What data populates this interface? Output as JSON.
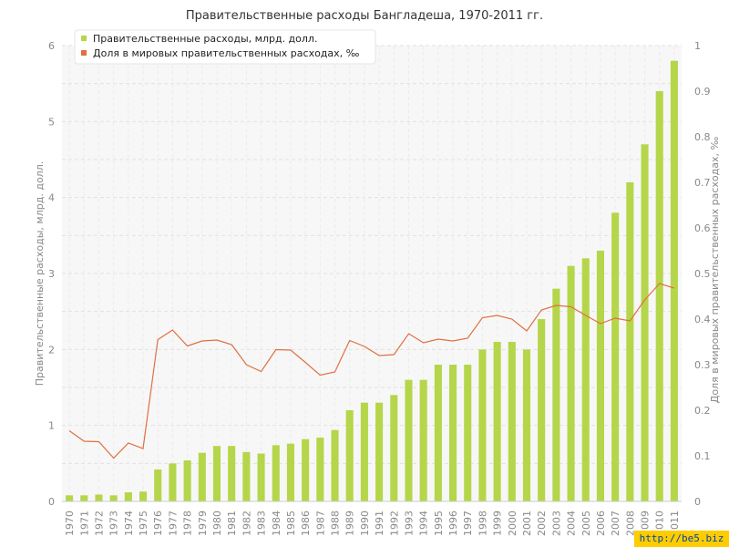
{
  "chart_data": {
    "type": "bar",
    "title": "Правительственные расходы Бангладеша, 1970-2011 гг.",
    "ylabel": "Правительственные расходы, млрд. долл.",
    "y2label": "Доля в мировых правительственных расходах, ‰",
    "ylim": [
      0,
      6
    ],
    "y2lim": [
      0,
      1
    ],
    "yticks": [
      "0",
      "1",
      "2",
      "3",
      "4",
      "5",
      "6"
    ],
    "y2ticks": [
      "0",
      "0.1",
      "0.2",
      "0.3",
      "0.4",
      "0.5",
      "0.6",
      "0.7",
      "0.8",
      "0.9",
      "1"
    ],
    "grid": true,
    "legend_position": "top-left",
    "categories": [
      "1970",
      "1971",
      "1972",
      "1973",
      "1974",
      "1975",
      "1976",
      "1977",
      "1978",
      "1979",
      "1980",
      "1981",
      "1982",
      "1983",
      "1984",
      "1985",
      "1986",
      "1987",
      "1988",
      "1989",
      "1990",
      "1991",
      "1992",
      "1993",
      "1994",
      "1995",
      "1996",
      "1997",
      "1998",
      "1999",
      "2000",
      "2001",
      "2002",
      "2003",
      "2004",
      "2005",
      "2006",
      "2007",
      "2008",
      "2009",
      "2010",
      "2011"
    ],
    "series": [
      {
        "name": "Правительственные расходы, млрд. долл.",
        "type": "bar",
        "axis": "left",
        "color": "#b5d64a",
        "values": [
          0.08,
          0.08,
          0.09,
          0.08,
          0.12,
          0.13,
          0.42,
          0.5,
          0.54,
          0.64,
          0.73,
          0.73,
          0.65,
          0.63,
          0.74,
          0.76,
          0.82,
          0.84,
          0.94,
          1.2,
          1.3,
          1.3,
          1.4,
          1.6,
          1.6,
          1.8,
          1.8,
          1.8,
          2.0,
          2.1,
          2.1,
          2.0,
          2.4,
          2.8,
          3.1,
          3.2,
          3.3,
          3.8,
          4.2,
          4.7,
          5.4,
          5.8
        ]
      },
      {
        "name": "Доля в мировых правительственных расходах, ‰",
        "type": "line",
        "axis": "right",
        "color": "#e07040",
        "values": [
          0.155,
          0.132,
          0.131,
          0.095,
          0.128,
          0.116,
          0.355,
          0.376,
          0.341,
          0.352,
          0.354,
          0.344,
          0.3,
          0.285,
          0.333,
          0.332,
          0.305,
          0.277,
          0.284,
          0.353,
          0.34,
          0.32,
          0.322,
          0.368,
          0.348,
          0.356,
          0.352,
          0.358,
          0.403,
          0.408,
          0.4,
          0.374,
          0.42,
          0.43,
          0.427,
          0.408,
          0.39,
          0.402,
          0.396,
          0.442,
          0.478,
          0.468
        ]
      }
    ]
  },
  "watermark": "http://be5.biz"
}
